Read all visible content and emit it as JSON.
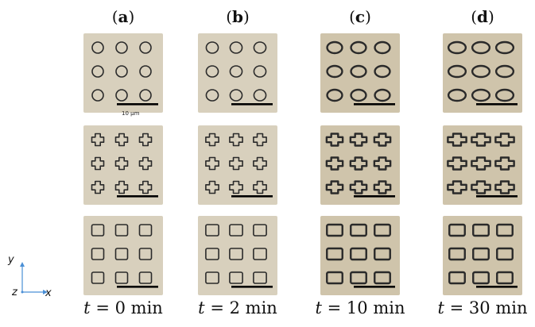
{
  "columns": [
    {
      "id": "a",
      "label": "a",
      "time": "0",
      "unit": "min"
    },
    {
      "id": "b",
      "label": "b",
      "time": "2",
      "unit": "min"
    },
    {
      "id": "c",
      "label": "c",
      "time": "10",
      "unit": "min"
    },
    {
      "id": "d",
      "label": "d",
      "time": "30",
      "unit": "min"
    }
  ],
  "rows": [
    {
      "shape": "circle"
    },
    {
      "shape": "cross"
    },
    {
      "shape": "square"
    }
  ],
  "time_prefix": "t",
  "equals": "=",
  "scale_bar_label": "10 μm",
  "axes": {
    "y": "y",
    "z": "z",
    "x": "x",
    "color": "#4a8fd6"
  },
  "colors": {
    "tile_bg": "#d8d0bd",
    "tile_bg_dark": "#cfc4ab",
    "outline": "#2a2a2a",
    "scale_bar": "#000000"
  }
}
